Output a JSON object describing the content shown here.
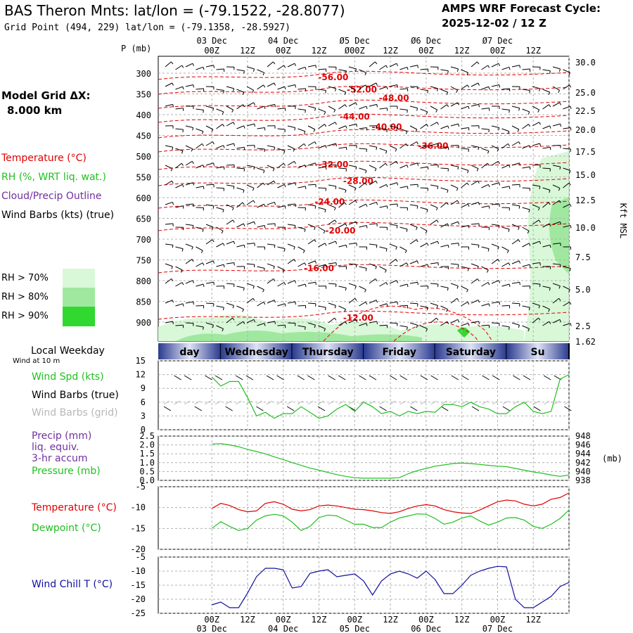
{
  "header": {
    "title": "BAS Theron Mnts:  lat/lon = (-79.1522, -28.8077)",
    "grid_point": "Grid Point (494, 229) lat/lon = (-79.1358, -28.5927)",
    "cycle_line1": "AMPS WRF Forecast Cycle:",
    "cycle_line2": "2025-12-02 / 12  Z"
  },
  "left_panel": {
    "model_grid_line1": "Model Grid ΔX:",
    "model_grid_line2": "8.000 km",
    "legend": [
      {
        "label": "Temperature (°C)",
        "color": "#e00000"
      },
      {
        "label": "RH (%, WRT liq. wat.)",
        "color": "#20c020"
      },
      {
        "label": "Cloud/Precip Outline",
        "color": "#7030a0"
      },
      {
        "label": "Wind Barbs (kts) (true)",
        "color": "#000000"
      }
    ],
    "rh_legend": [
      {
        "label": "RH > 70%",
        "color": "#d8f8d8"
      },
      {
        "label": "RH > 80%",
        "color": "#a0e8a0"
      },
      {
        "label": "RH > 90%",
        "color": "#30d830"
      }
    ],
    "local_weekday": "Local Weekday",
    "wind_at": "Wind at 10 m"
  },
  "colors": {
    "temperature": "#e00000",
    "rh": "#20c020",
    "pressure": "#20c020",
    "windchill": "#1010a0",
    "grid": "#b0b0b0"
  },
  "time_axis": {
    "date_labels": [
      "03 Dec",
      "04 Dec",
      "05 Dec",
      "06 Dec",
      "07 Dec"
    ],
    "date_labels_top": [
      "03 Dec",
      "04 Dec",
      "Ø5 Dec",
      "Ø6 Dec",
      "Ø7 Dec"
    ],
    "hour_labels_top": [
      "00Z",
      "12Z",
      "00Z",
      "12Z",
      "Ø00Z",
      "12Z",
      "00Z",
      "12Z",
      "00Z",
      "12Z"
    ],
    "hour_labels": [
      "00Z",
      "12Z",
      "00Z",
      "12Z",
      "00Z",
      "12Z",
      "00Z",
      "12Z",
      "00Z",
      "12Z"
    ]
  },
  "chart_data": [
    {
      "type": "line",
      "panel": "time-height cross section",
      "ylabel_left": "P (mb)",
      "ylabel_right": "Kft MSL",
      "pressure_ticks": [
        300,
        350,
        400,
        450,
        500,
        550,
        600,
        650,
        700,
        750,
        800,
        850,
        900
      ],
      "height_ticks": [
        "30.0",
        "25.0",
        "22.5",
        "20.0",
        "17.5",
        "15.0",
        "12.5",
        "10.0",
        "7.5",
        "5.0",
        "2.5",
        "1.62"
      ],
      "temperature_labels": [
        {
          "label": "-56.00",
          "t": 1.7,
          "p": 310
        },
        {
          "label": "-52.00",
          "t": 2.1,
          "p": 340
        },
        {
          "label": "-48.00",
          "t": 2.55,
          "p": 360
        },
        {
          "label": "-44.00",
          "t": 2.0,
          "p": 405
        },
        {
          "label": "-40.00",
          "t": 2.45,
          "p": 430
        },
        {
          "label": "-36.00",
          "t": 3.1,
          "p": 475
        },
        {
          "label": "-32.00",
          "t": 1.7,
          "p": 520
        },
        {
          "label": "-28.00",
          "t": 2.05,
          "p": 560
        },
        {
          "label": "-24.00",
          "t": 1.65,
          "p": 610
        },
        {
          "label": "-20.00",
          "t": 1.8,
          "p": 680
        },
        {
          "label": "-16.00",
          "t": 1.5,
          "p": 770
        },
        {
          "label": "-12.00",
          "t": 2.05,
          "p": 890
        }
      ]
    },
    {
      "type": "line",
      "panel": "10 m wind speed",
      "legend": [
        "Wind Spd (kts)",
        "Wind Barbs (true)",
        "Wind Barbs (grid)"
      ],
      "y_ticks": [
        0,
        3,
        6,
        9,
        12,
        15
      ],
      "ylim": [
        0,
        15
      ],
      "series": [
        {
          "name": "Wind Spd (kts)",
          "x": [
            0,
            3,
            6,
            9,
            12,
            15,
            18,
            21,
            24,
            27,
            30,
            33,
            36,
            39,
            42,
            45,
            48,
            51,
            54,
            57,
            60,
            63,
            66,
            69,
            72,
            75,
            78,
            81,
            84,
            87,
            90,
            93,
            96,
            99,
            102,
            105,
            108,
            111,
            114,
            117,
            120
          ],
          "values": [
            11.5,
            9.5,
            10.5,
            10.5,
            7,
            3,
            3.8,
            2.5,
            3.5,
            3.5,
            5,
            3.8,
            2.5,
            3,
            4.5,
            5.5,
            4,
            6,
            5,
            3.5,
            4,
            3,
            4,
            3.5,
            4,
            3.8,
            5.5,
            5.5,
            5,
            6,
            5,
            4.5,
            3.5,
            3.5,
            5,
            6,
            4,
            3.5,
            4,
            11,
            12
          ]
        }
      ]
    },
    {
      "type": "line",
      "panel": "precip and pressure",
      "legend": [
        "Precip (mm)",
        "liq. equiv.",
        "3-hr accum",
        "Pressure (mb)"
      ],
      "y_ticks_left": [
        "0.0",
        "0.5",
        "1.0",
        "1.5",
        "2.0",
        "2.5"
      ],
      "y_ticks_right": [
        938,
        940,
        942,
        944,
        946,
        948
      ],
      "ylim_right": [
        938,
        948
      ],
      "right_unit": "(mb)",
      "series": [
        {
          "name": "Pressure (mb)",
          "x": [
            0,
            3,
            6,
            9,
            12,
            15,
            18,
            21,
            24,
            27,
            30,
            33,
            36,
            39,
            42,
            45,
            48,
            51,
            54,
            57,
            60,
            63,
            66,
            69,
            72,
            75,
            78,
            81,
            84,
            87,
            90,
            93,
            96,
            99,
            102,
            105,
            108,
            111,
            114,
            117,
            120
          ],
          "values": [
            946.2,
            946.3,
            946,
            945.6,
            945,
            944.5,
            944,
            943.3,
            942.7,
            942,
            941.4,
            940.8,
            940.3,
            939.8,
            939.3,
            938.9,
            938.6,
            938.5,
            938.5,
            938.5,
            938.5,
            938.6,
            939.5,
            940.2,
            940.7,
            941.2,
            941.5,
            941.8,
            941.9,
            941.8,
            941.6,
            941.4,
            941.2,
            941.1,
            940.7,
            940.3,
            939.9,
            939.6,
            939.2,
            938.9,
            939.2
          ]
        }
      ]
    },
    {
      "type": "line",
      "panel": "temperature and dewpoint",
      "legend": [
        "Temperature (°C)",
        "Dewpoint (°C)"
      ],
      "y_ticks": [
        -5,
        -10,
        -15,
        -20
      ],
      "ylim": [
        -20,
        -5
      ],
      "series": [
        {
          "name": "Temperature (°C)",
          "x": [
            0,
            3,
            6,
            9,
            12,
            15,
            18,
            21,
            24,
            27,
            30,
            33,
            36,
            39,
            42,
            45,
            48,
            51,
            54,
            57,
            60,
            63,
            66,
            69,
            72,
            75,
            78,
            81,
            84,
            87,
            90,
            93,
            96,
            99,
            102,
            105,
            108,
            111,
            114,
            117,
            120
          ],
          "values": [
            -10.2,
            -9,
            -9.5,
            -10.5,
            -11,
            -10.8,
            -9,
            -8.6,
            -9.2,
            -10.4,
            -10.8,
            -10.5,
            -9.6,
            -9.4,
            -9.6,
            -10,
            -10.4,
            -10.5,
            -10.8,
            -11.2,
            -11.4,
            -11,
            -10.2,
            -9.6,
            -9.3,
            -9.6,
            -10.5,
            -11,
            -11.3,
            -11.4,
            -10.6,
            -9.6,
            -8.6,
            -8.2,
            -8.4,
            -9.2,
            -9.6,
            -9.2,
            -8,
            -7.6,
            -6.5
          ]
        },
        {
          "name": "Dewpoint (°C)",
          "x": [
            0,
            3,
            6,
            9,
            12,
            15,
            18,
            21,
            24,
            27,
            30,
            33,
            36,
            39,
            42,
            45,
            48,
            51,
            54,
            57,
            60,
            63,
            66,
            69,
            72,
            75,
            78,
            81,
            84,
            87,
            90,
            93,
            96,
            99,
            102,
            105,
            108,
            111,
            114,
            117,
            120
          ],
          "values": [
            -15,
            -13.4,
            -14.5,
            -15.5,
            -15,
            -13,
            -12,
            -11.6,
            -12,
            -13.5,
            -15.5,
            -14.5,
            -12.4,
            -11.8,
            -12,
            -13,
            -14,
            -14,
            -14.8,
            -14.8,
            -13.5,
            -12.5,
            -12,
            -11.5,
            -11.6,
            -12.6,
            -14,
            -13.5,
            -12.5,
            -12,
            -13.2,
            -14.2,
            -13.5,
            -12.5,
            -12.4,
            -13,
            -14.5,
            -15,
            -14,
            -12.6,
            -10.6
          ]
        }
      ]
    },
    {
      "type": "line",
      "panel": "wind chill",
      "legend": [
        "Wind Chill T (°C)"
      ],
      "y_ticks": [
        -5,
        -10,
        -15,
        -20,
        -25
      ],
      "ylim": [
        -25,
        -5
      ],
      "series": [
        {
          "name": "Wind Chill T (°C)",
          "x": [
            0,
            3,
            6,
            9,
            12,
            15,
            18,
            21,
            24,
            27,
            30,
            33,
            36,
            39,
            42,
            45,
            48,
            51,
            54,
            57,
            60,
            63,
            66,
            69,
            72,
            75,
            78,
            81,
            84,
            87,
            90,
            93,
            96,
            99,
            102,
            105,
            108,
            111,
            114,
            117,
            120
          ],
          "values": [
            -22,
            -21,
            -23,
            -23,
            -17.8,
            -12,
            -9,
            -9,
            -9.5,
            -16,
            -15.5,
            -10.8,
            -10,
            -9.5,
            -12,
            -11.5,
            -11,
            -13.5,
            -18.5,
            -13.5,
            -11,
            -10,
            -11,
            -12.5,
            -10,
            -13,
            -18,
            -18,
            -15,
            -11.5,
            -10,
            -9,
            -8.3,
            -8.5,
            -20,
            -23,
            -23,
            -21,
            -19,
            -15.5,
            -14
          ]
        }
      ]
    }
  ],
  "weekdays": [
    "day",
    "Wednesday",
    "Thursday",
    "Friday",
    "Saturday",
    "Su"
  ]
}
